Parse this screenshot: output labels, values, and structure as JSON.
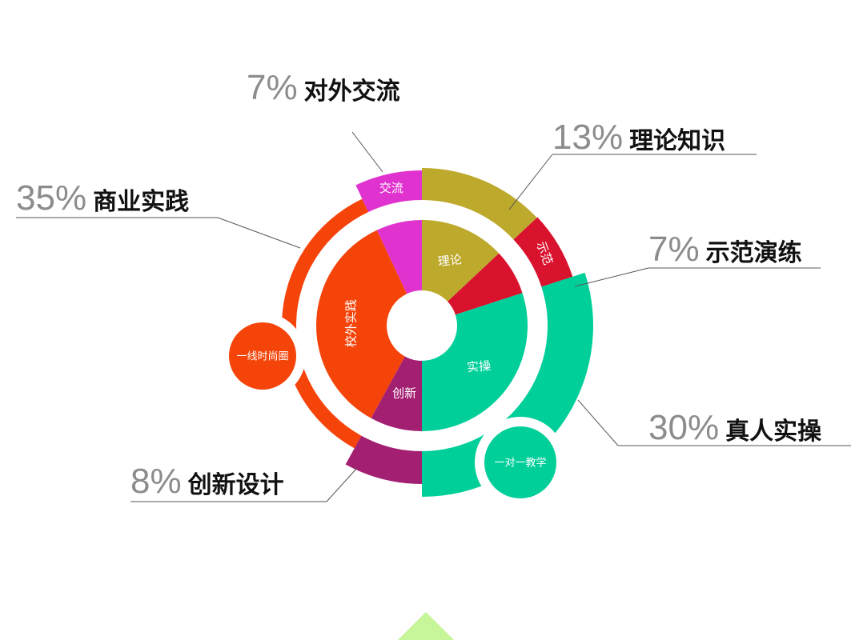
{
  "chart_data": {
    "type": "pie",
    "segments": [
      {
        "key": "theory",
        "percent": 13,
        "label": "理论知识",
        "inner_label": "理论",
        "outer_label": "",
        "color": "#bda92c"
      },
      {
        "key": "demo",
        "percent": 7,
        "label": "示范演练",
        "inner_label": "",
        "outer_label": "示范",
        "color": "#d9122e"
      },
      {
        "key": "practice",
        "percent": 30,
        "label": "真人实操",
        "inner_label": "实操",
        "outer_label": "",
        "color": "#00cf9a"
      },
      {
        "key": "design",
        "percent": 8,
        "label": "创新设计",
        "inner_label": "创新",
        "outer_label": "",
        "color": "#a31f72"
      },
      {
        "key": "business",
        "percent": 35,
        "label": "商业实践",
        "inner_label": "校外实践",
        "outer_label": "",
        "color": "#f5440a"
      },
      {
        "key": "exchange",
        "percent": 7,
        "label": "对外交流",
        "inner_label": "",
        "outer_label": "交流",
        "color": "#e032cf"
      }
    ],
    "bubbles": [
      {
        "text": "一线时尚圈",
        "color": "#f5440a"
      },
      {
        "text": "一对一教学",
        "color": "#00cf9a"
      }
    ],
    "accent_triangle_color": "#c6f59a"
  }
}
